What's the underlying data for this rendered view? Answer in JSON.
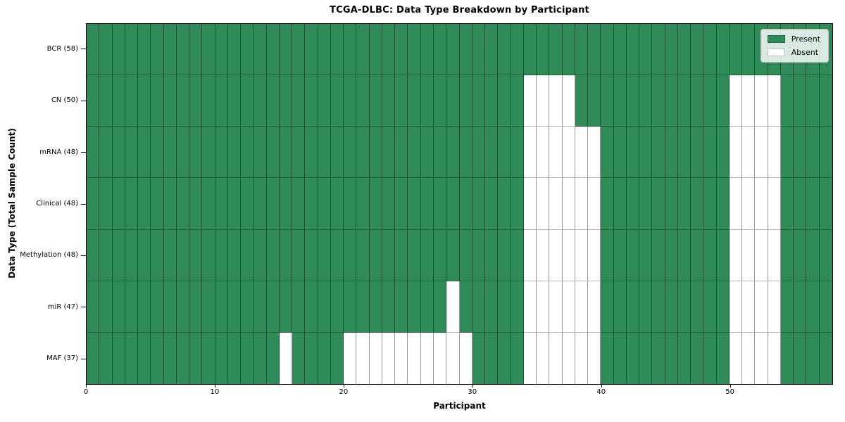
{
  "chart_data": {
    "type": "heatmap",
    "title": "TCGA-DLBC: Data Type Breakdown by Participant",
    "xlabel": "Participant",
    "ylabel": "Data Type (Total Sample Count)",
    "n_columns": 58,
    "x_range": [
      0,
      58
    ],
    "x_ticks": [
      0,
      10,
      20,
      30,
      40,
      50
    ],
    "grid": "cell-edges-on",
    "legend_position": "upper-right",
    "colors": {
      "present": "#2e8b57",
      "absent": "#ffffff"
    },
    "legend": [
      {
        "label": "Present",
        "color": "#2e8b57"
      },
      {
        "label": "Absent",
        "color": "#ffffff"
      }
    ],
    "rows": [
      {
        "label": "BCR (58)",
        "total_samples": 58,
        "absent_participants": []
      },
      {
        "label": "CN (50)",
        "total_samples": 50,
        "absent_participants": [
          34,
          35,
          36,
          37,
          50,
          51,
          52,
          53
        ]
      },
      {
        "label": "mRNA (48)",
        "total_samples": 48,
        "absent_participants": [
          34,
          35,
          36,
          37,
          38,
          39,
          50,
          51,
          52,
          53
        ]
      },
      {
        "label": "Clinical (48)",
        "total_samples": 48,
        "absent_participants": [
          34,
          35,
          36,
          37,
          38,
          39,
          50,
          51,
          52,
          53
        ]
      },
      {
        "label": "Methylation (48)",
        "total_samples": 48,
        "absent_participants": [
          34,
          35,
          36,
          37,
          38,
          39,
          50,
          51,
          52,
          53
        ]
      },
      {
        "label": "miR (47)",
        "total_samples": 47,
        "absent_participants": [
          28,
          34,
          35,
          36,
          37,
          38,
          39,
          50,
          51,
          52,
          53
        ]
      },
      {
        "label": "MAF (37)",
        "total_samples": 37,
        "absent_participants": [
          15,
          20,
          21,
          22,
          23,
          24,
          25,
          26,
          27,
          28,
          29,
          34,
          35,
          36,
          37,
          38,
          39,
          50,
          51,
          52,
          53
        ]
      }
    ]
  }
}
